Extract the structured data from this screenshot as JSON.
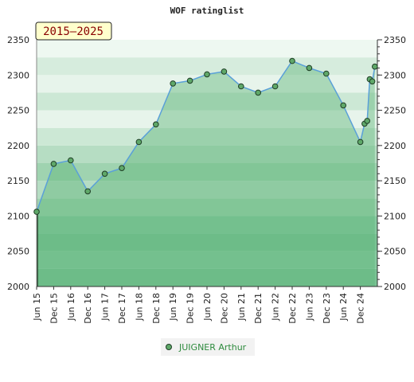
{
  "chart_data": {
    "type": "area",
    "title": "WOF ratinglist",
    "range_label": "2015–2025",
    "ylim": [
      2000,
      2350
    ],
    "yticks": [
      2000,
      2050,
      2100,
      2150,
      2200,
      2250,
      2300,
      2350
    ],
    "xtick_labels": [
      "Jun 15",
      "Dec 15",
      "Jun 16",
      "Dec 16",
      "Jun 17",
      "Dec 17",
      "Jun 18",
      "Dec 18",
      "Jun 19",
      "Dec 19",
      "Jun 20",
      "Dec 20",
      "Jun 21",
      "Dec 21",
      "Jun 22",
      "Dec 22",
      "Jun 23",
      "Dec 23",
      "Jun 24",
      "Dec 24"
    ],
    "series": [
      {
        "name": "JUIGNER Arthur",
        "color": "#5aa0d8",
        "marker_color": "#5fa869",
        "points": [
          {
            "x": 0,
            "y": 2106
          },
          {
            "x": 1,
            "y": 2174
          },
          {
            "x": 2,
            "y": 2179
          },
          {
            "x": 3,
            "y": 2135
          },
          {
            "x": 4,
            "y": 2160
          },
          {
            "x": 5,
            "y": 2168
          },
          {
            "x": 6,
            "y": 2205
          },
          {
            "x": 7,
            "y": 2230
          },
          {
            "x": 8,
            "y": 2288
          },
          {
            "x": 9,
            "y": 2292
          },
          {
            "x": 10,
            "y": 2301
          },
          {
            "x": 11,
            "y": 2305
          },
          {
            "x": 12,
            "y": 2284
          },
          {
            "x": 13,
            "y": 2275
          },
          {
            "x": 14,
            "y": 2284
          },
          {
            "x": 15,
            "y": 2320
          },
          {
            "x": 16,
            "y": 2310
          },
          {
            "x": 17,
            "y": 2302
          },
          {
            "x": 18,
            "y": 2257
          },
          {
            "x": 19,
            "y": 2205
          },
          {
            "x": 19.25,
            "y": 2231
          },
          {
            "x": 19.4,
            "y": 2235
          },
          {
            "x": 19.55,
            "y": 2294
          },
          {
            "x": 19.7,
            "y": 2291
          },
          {
            "x": 19.85,
            "y": 2312
          }
        ]
      }
    ],
    "legend": {
      "position": "bottom-center"
    },
    "colors": {
      "band_dark": "#7cc495",
      "band_light": "#e9f5ec",
      "area_fill": "#6cbc86",
      "line": "#5aa0d8",
      "badge_bg": "#ffffcc"
    }
  }
}
